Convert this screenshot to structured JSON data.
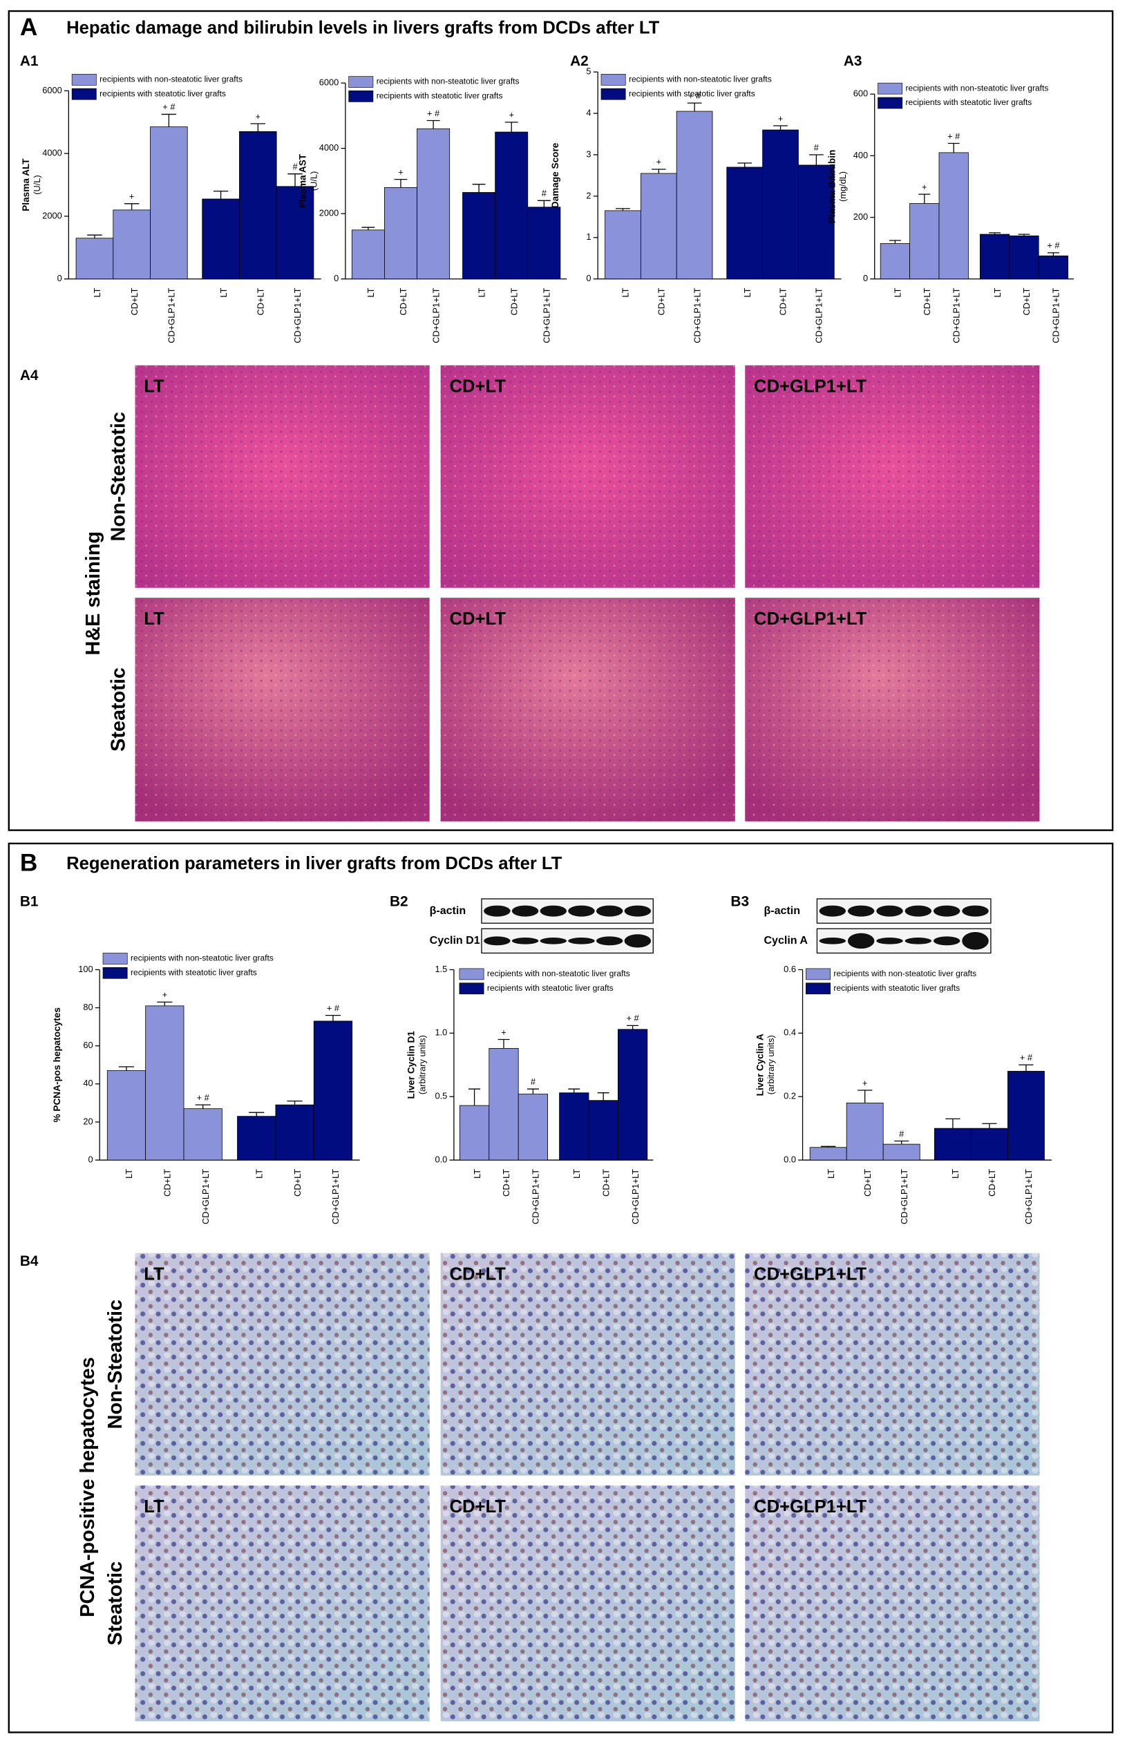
{
  "panel_a": {
    "letter": "A",
    "title": "Hepatic damage and bilirubin levels in livers grafts from DCDs after LT",
    "sub_labels": [
      "A1",
      "A2",
      "A3",
      "A4"
    ]
  },
  "panel_b": {
    "letter": "B",
    "title": "Regeneration parameters in liver grafts from DCDs after LT",
    "sub_labels": [
      "B1",
      "B2",
      "B3",
      "B4"
    ]
  },
  "chart_data": [
    {
      "type": "bar",
      "y_label": "Plasma ALT",
      "y_unit": "(U/L)",
      "categories": [
        "LT",
        "CD+LT",
        "CD+GLP1+LT"
      ],
      "ylim": [
        0,
        6000
      ],
      "yticks": [
        0,
        2000,
        4000,
        6000
      ],
      "series": [
        {
          "name": "recipients with non-steatotic liver grafts",
          "color": "#8a93d9",
          "values": [
            1300,
            2200,
            4850
          ],
          "errors": [
            100,
            200,
            400
          ],
          "labels": [
            null,
            "+",
            "+ #"
          ]
        },
        {
          "name": "recipients with steatotic liver grafts",
          "color": "#000c80",
          "values": [
            2550,
            4700,
            2950
          ],
          "errors": [
            250,
            250,
            400
          ],
          "labels": [
            null,
            "+",
            "#"
          ]
        }
      ]
    },
    {
      "type": "bar",
      "y_label": "Plasma AST",
      "y_unit": "(U/L)",
      "categories": [
        "LT",
        "CD+LT",
        "CD+GLP1+LT"
      ],
      "ylim": [
        0,
        6000
      ],
      "yticks": [
        0,
        2000,
        4000,
        6000
      ],
      "series": [
        {
          "name": "recipients with non-steatotic liver grafts",
          "color": "#8a93d9",
          "values": [
            1500,
            2800,
            4600
          ],
          "errors": [
            80,
            250,
            250
          ],
          "labels": [
            null,
            "+",
            "+ #"
          ]
        },
        {
          "name": "recipients with steatotic liver grafts",
          "color": "#000c80",
          "values": [
            2650,
            4500,
            2200
          ],
          "errors": [
            250,
            300,
            200
          ],
          "labels": [
            null,
            "+",
            "#"
          ]
        }
      ]
    },
    {
      "type": "bar",
      "y_label": "Damage Score",
      "categories": [
        "LT",
        "CD+LT",
        "CD+GLP1+LT"
      ],
      "ylim": [
        0,
        5
      ],
      "yticks": [
        0,
        1,
        2,
        3,
        4,
        5
      ],
      "series": [
        {
          "name": "recipients with non-steatotic liver grafts",
          "color": "#8a93d9",
          "values": [
            1.65,
            2.55,
            4.05
          ],
          "errors": [
            0.05,
            0.1,
            0.2
          ],
          "labels": [
            null,
            "+",
            "+ #"
          ]
        },
        {
          "name": "recipients with steatotic liver grafts",
          "color": "#000c80",
          "values": [
            2.7,
            3.6,
            2.75
          ],
          "errors": [
            0.1,
            0.1,
            0.25
          ],
          "labels": [
            null,
            "+",
            "#"
          ]
        }
      ]
    },
    {
      "type": "bar",
      "y_label": "Plasma Bilirubin",
      "y_unit": "(mg/dL)",
      "categories": [
        "LT",
        "CD+LT",
        "CD+GLP1+LT"
      ],
      "ylim": [
        0,
        600
      ],
      "yticks": [
        0,
        200,
        400,
        600
      ],
      "series": [
        {
          "name": "recipients with non-steatotic liver grafts",
          "color": "#8a93d9",
          "values": [
            115,
            245,
            410
          ],
          "errors": [
            10,
            30,
            30
          ],
          "labels": [
            null,
            "+",
            "+ #"
          ]
        },
        {
          "name": "recipients with steatotic liver grafts",
          "color": "#000c80",
          "values": [
            145,
            140,
            75
          ],
          "errors": [
            5,
            5,
            10
          ],
          "labels": [
            null,
            null,
            "+ #"
          ]
        }
      ]
    },
    {
      "type": "bar",
      "y_label": "% PCNA-pos hepatocytes",
      "categories": [
        "LT",
        "CD+LT",
        "CD+GLP1+LT"
      ],
      "ylim": [
        0,
        100
      ],
      "yticks": [
        0,
        20,
        40,
        60,
        80,
        100
      ],
      "series": [
        {
          "name": "recipients with non-steatotic liver grafts",
          "color": "#8a93d9",
          "values": [
            47,
            81,
            27
          ],
          "errors": [
            2,
            2,
            2
          ],
          "labels": [
            null,
            "+",
            "+ #"
          ]
        },
        {
          "name": "recipients with steatotic liver grafts",
          "color": "#000c80",
          "values": [
            23,
            29,
            73
          ],
          "errors": [
            2,
            2,
            3
          ],
          "labels": [
            null,
            null,
            "+ #"
          ]
        }
      ]
    },
    {
      "type": "bar",
      "y_label": "Liver  Cyclin D1",
      "y_unit": "(arbitrary units)",
      "blot_labels": [
        "β-actin",
        "Cyclin D1"
      ],
      "categories": [
        "LT",
        "CD+LT",
        "CD+GLP1+LT"
      ],
      "ylim": [
        0,
        1.5
      ],
      "yticks": [
        {
          "value": 0,
          "label": "0.0"
        },
        0.5,
        {
          "value": 1,
          "label": "1.0"
        },
        1.5
      ],
      "series": [
        {
          "name": "recipients with non-steatotic liver grafts",
          "color": "#8a93d9",
          "values": [
            0.43,
            0.88,
            0.52
          ],
          "errors": [
            0.13,
            0.07,
            0.04
          ],
          "labels": [
            null,
            "+",
            "#"
          ]
        },
        {
          "name": "recipients with steatotic liver grafts",
          "color": "#000c80",
          "values": [
            0.53,
            0.47,
            1.03
          ],
          "errors": [
            0.03,
            0.06,
            0.03
          ],
          "labels": [
            null,
            null,
            "+ #"
          ]
        }
      ]
    },
    {
      "type": "bar",
      "y_label": "Liver  Cyclin A",
      "y_unit": "(arbitrary units)",
      "blot_labels": [
        "β-actin",
        "Cyclin A"
      ],
      "categories": [
        "LT",
        "CD+LT",
        "CD+GLP1+LT"
      ],
      "ylim": [
        0,
        0.6
      ],
      "yticks": [
        {
          "value": 0,
          "label": "0.0"
        },
        0.2,
        0.4,
        0.6
      ],
      "series": [
        {
          "name": "recipients with non-steatotic liver grafts",
          "color": "#8a93d9",
          "values": [
            0.04,
            0.18,
            0.05
          ],
          "errors": [
            0.003,
            0.04,
            0.01
          ],
          "labels": [
            null,
            "+",
            "#"
          ]
        },
        {
          "name": "recipients with steatotic liver grafts",
          "color": "#000c80",
          "values": [
            0.1,
            0.1,
            0.28
          ],
          "errors": [
            0.03,
            0.015,
            0.02
          ],
          "labels": [
            null,
            null,
            "+ #"
          ]
        }
      ]
    }
  ],
  "he_images": {
    "group_label": "H&E staining",
    "rows": [
      {
        "label": "Non-Steatotic",
        "cells": [
          "LT",
          "CD+LT",
          "CD+GLP1+LT"
        ]
      },
      {
        "label": "Steatotic",
        "cells": [
          "LT",
          "CD+LT",
          "CD+GLP1+LT"
        ]
      }
    ]
  },
  "pcna_images": {
    "group_label": "PCNA-positive hepatocytes",
    "rows": [
      {
        "label": "Non-Steatotic",
        "cells": [
          "LT",
          "CD+LT",
          "CD+GLP1+LT"
        ]
      },
      {
        "label": "Steatotic",
        "cells": [
          "LT",
          "CD+LT",
          "CD+GLP1+LT"
        ]
      }
    ]
  }
}
